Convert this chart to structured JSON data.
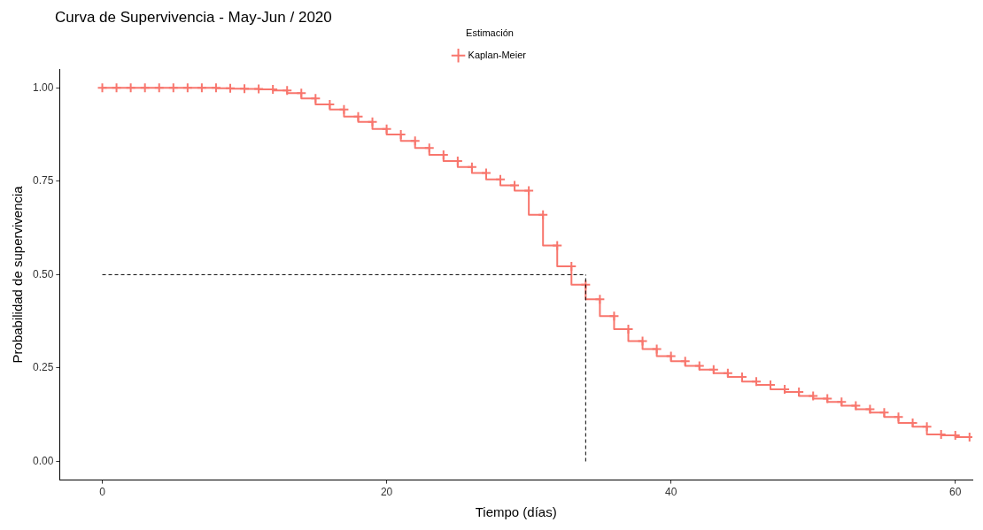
{
  "chart_data": {
    "type": "step",
    "title": "Curva de Supervivencia - May-Jun / 2020",
    "xlabel": "Tiempo (días)",
    "ylabel": "Probabilidad de supervivencia",
    "legend_title": "Estimación",
    "legend": "top",
    "marker": "cross",
    "grid": false,
    "x": [
      0,
      1,
      2,
      3,
      4,
      5,
      6,
      7,
      8,
      9,
      10,
      11,
      12,
      13,
      14,
      15,
      16,
      17,
      18,
      19,
      20,
      21,
      22,
      23,
      24,
      25,
      26,
      27,
      28,
      29,
      30,
      31,
      32,
      33,
      34,
      35,
      36,
      37,
      38,
      39,
      40,
      41,
      42,
      43,
      44,
      45,
      46,
      47,
      48,
      49,
      50,
      51,
      52,
      53,
      54,
      55,
      56,
      57,
      58,
      59,
      60,
      61
    ],
    "series": [
      {
        "name": "Kaplan-Meier",
        "color": "#f8766d",
        "values": [
          1.0,
          1.0,
          1.0,
          1.0,
          1.0,
          1.0,
          1.0,
          1.0,
          1.0,
          0.999,
          0.998,
          0.997,
          0.996,
          0.993,
          0.986,
          0.972,
          0.956,
          0.942,
          0.923,
          0.909,
          0.89,
          0.875,
          0.858,
          0.839,
          0.821,
          0.804,
          0.788,
          0.772,
          0.755,
          0.739,
          0.725,
          0.66,
          0.578,
          0.522,
          0.473,
          0.434,
          0.389,
          0.354,
          0.322,
          0.301,
          0.282,
          0.268,
          0.256,
          0.246,
          0.236,
          0.226,
          0.214,
          0.205,
          0.193,
          0.186,
          0.175,
          0.168,
          0.159,
          0.149,
          0.14,
          0.131,
          0.119,
          0.103,
          0.093,
          0.072,
          0.07,
          0.065
        ]
      }
    ],
    "xlim": [
      -3,
      61.2
    ],
    "xticks": [
      0,
      20,
      40,
      60
    ],
    "ylim": [
      -0.05,
      1.05
    ],
    "yticks": [
      {
        "value": 0,
        "label": "0.00"
      },
      {
        "value": 0.25,
        "label": "0.25"
      },
      {
        "value": 0.5,
        "label": "0.50"
      },
      {
        "value": 0.75,
        "label": "0.75"
      },
      {
        "value": 1,
        "label": "1.00"
      }
    ],
    "ref_lines": [
      {
        "axis": "y",
        "value": 0.5,
        "color": "#000000",
        "line_style": "dashed"
      },
      {
        "axis": "x",
        "value": 34,
        "color": "#000000",
        "line_style": "dashed"
      }
    ]
  }
}
